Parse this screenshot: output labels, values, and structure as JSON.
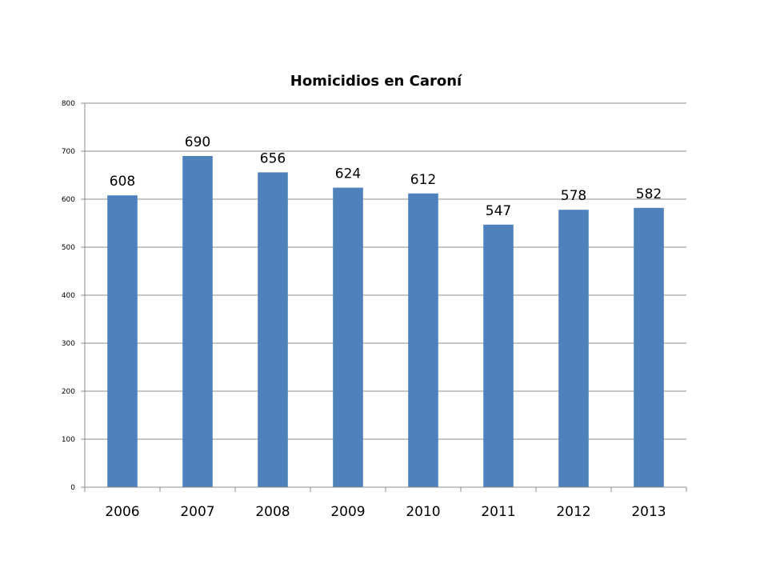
{
  "chart_data": {
    "type": "bar",
    "title": "Homicidios en Caroní",
    "xlabel": "",
    "ylabel": "",
    "categories": [
      "2006",
      "2007",
      "2008",
      "2009",
      "2010",
      "2011",
      "2012",
      "2013"
    ],
    "values": [
      608,
      690,
      656,
      624,
      612,
      547,
      578,
      582
    ],
    "data_labels": [
      "608",
      "690",
      "656",
      "624",
      "612",
      "547",
      "578",
      "582"
    ],
    "ylim": [
      0,
      800
    ],
    "y_ticks": [
      0,
      100,
      200,
      300,
      400,
      500,
      600,
      700,
      800
    ],
    "y_tick_labels": [
      "0",
      "100",
      "200",
      "300",
      "400",
      "500",
      "600",
      "700",
      "800"
    ],
    "grid": true,
    "legend": "none",
    "bar_color": "#4f81bd"
  }
}
